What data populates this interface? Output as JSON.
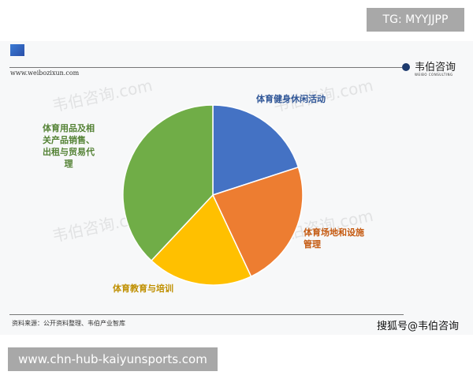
{
  "corner_tag": "TG: MYYJJPP",
  "header": {
    "site": "www.weibozixun.com",
    "brand": "韦伯咨询",
    "brand_sub": "WEIBO CONSULTING"
  },
  "watermark": "韦伯咨询.com",
  "chart_data": {
    "type": "pie",
    "title": "",
    "categories": [
      "体育健身休闲活动",
      "体育场地和设施管理",
      "体育教育与培训",
      "体育用品及相关产品销售、出租与贸易代理"
    ],
    "values": [
      20,
      23,
      19,
      38
    ],
    "colors": [
      "#4472c4",
      "#ed7d31",
      "#ffc000",
      "#70ad47"
    ],
    "label_colors": [
      "#2e5597",
      "#c55a11",
      "#bf8f00",
      "#548235"
    ],
    "legend": "none"
  },
  "footer": {
    "source": "资料来源：公开资料整理、韦伯产业智库",
    "watermark": "搜狐号@韦伯咨询"
  },
  "bottom_url": "www.chn-hub-kaiyunsports.com"
}
